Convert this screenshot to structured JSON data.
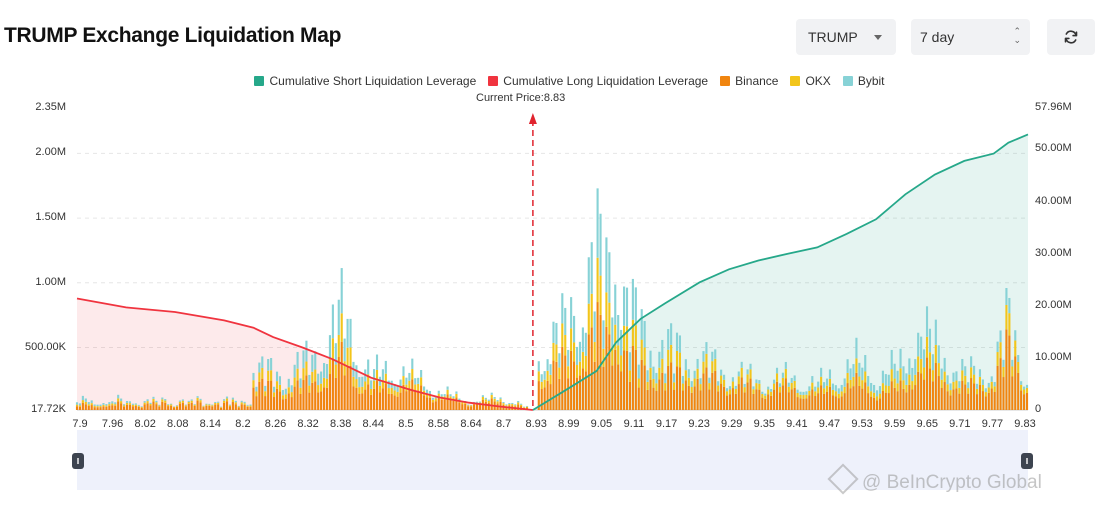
{
  "header": {
    "title": "TRUMP Exchange Liquidation Map",
    "symbol_select": "TRUMP",
    "range_select": "7 day"
  },
  "legend": [
    {
      "label": "Cumulative Short Liquidation Leverage",
      "color": "#26a88a"
    },
    {
      "label": "Cumulative Long Liquidation Leverage",
      "color": "#f0343f"
    },
    {
      "label": "Binance",
      "color": "#f0850f"
    },
    {
      "label": "OKX",
      "color": "#f2c51b"
    },
    {
      "label": "Bybit",
      "color": "#87d2d6"
    }
  ],
  "current_price_label": "Current Price:8.83",
  "watermark": "@ BeInCrypto Global",
  "chart_data": {
    "type": "bar",
    "current_price": 8.83,
    "x_ticks": [
      "7.9",
      "7.96",
      "8.02",
      "8.08",
      "8.14",
      "8.2",
      "8.26",
      "8.32",
      "8.38",
      "8.44",
      "8.5",
      "8.58",
      "8.64",
      "8.7",
      "8.93",
      "8.99",
      "9.05",
      "9.11",
      "9.17",
      "9.23",
      "9.29",
      "9.35",
      "9.41",
      "9.47",
      "9.53",
      "9.59",
      "9.65",
      "9.71",
      "9.77",
      "9.83"
    ],
    "y_left_ticks": [
      "2.35M",
      "2.00M",
      "1.50M",
      "1.00M",
      "500.00K",
      "17.72K"
    ],
    "y_left_values": [
      2350000,
      2000000,
      1500000,
      1000000,
      500000,
      17720
    ],
    "ylim_left": [
      17720,
      2350000
    ],
    "y_right_ticks": [
      "57.96M",
      "50.00M",
      "40.00M",
      "30.00M",
      "20.00M",
      "10.00M",
      "0"
    ],
    "y_right_values": [
      57960000,
      50000000,
      40000000,
      30000000,
      20000000,
      10000000,
      0
    ],
    "ylim_right": [
      0,
      57960000
    ],
    "x_range": [
      7.9,
      9.84
    ],
    "cumulative_long": {
      "x": [
        7.9,
        8.0,
        8.1,
        8.2,
        8.26,
        8.3,
        8.36,
        8.42,
        8.5,
        8.58,
        8.64,
        8.7,
        8.76,
        8.83
      ],
      "y": [
        21400000,
        19700000,
        18800000,
        17200000,
        15800000,
        14000000,
        12000000,
        9800000,
        6200000,
        3900000,
        2400000,
        1400000,
        700000,
        0
      ]
    },
    "cumulative_short": {
      "x": [
        8.83,
        8.9,
        8.96,
        9.0,
        9.05,
        9.1,
        9.17,
        9.23,
        9.29,
        9.35,
        9.41,
        9.47,
        9.53,
        9.59,
        9.65,
        9.71,
        9.77,
        9.8,
        9.84
      ],
      "y": [
        0,
        4000000,
        7500000,
        13000000,
        17500000,
        20500000,
        24500000,
        27000000,
        28700000,
        30000000,
        31200000,
        33800000,
        36600000,
        41400000,
        45200000,
        47800000,
        49200000,
        51300000,
        52900000
      ]
    },
    "bar_start": 7.9,
    "bar_step": 0.006,
    "bar_stack_order": [
      "Binance",
      "OKX",
      "Bybit"
    ],
    "bar_seed": [
      [
        8.26,
        480000
      ],
      [
        8.32,
        420000
      ],
      [
        8.38,
        600000
      ],
      [
        8.44,
        1120000
      ],
      [
        8.5,
        420000
      ],
      [
        8.56,
        480000
      ],
      [
        8.64,
        220000
      ],
      [
        8.7,
        100000
      ],
      [
        8.76,
        150000
      ],
      [
        8.8,
        80000
      ],
      [
        8.83,
        0
      ],
      [
        8.84,
        690000
      ],
      [
        8.9,
        980000
      ],
      [
        8.96,
        1840000
      ],
      [
        8.98,
        1600000
      ],
      [
        9.0,
        2120000
      ],
      [
        9.02,
        1300000
      ],
      [
        9.05,
        920000
      ],
      [
        9.1,
        750000
      ],
      [
        9.17,
        600000
      ],
      [
        9.23,
        450000
      ],
      [
        9.29,
        350000
      ],
      [
        9.35,
        380000
      ],
      [
        9.41,
        300000
      ],
      [
        9.47,
        500000
      ],
      [
        9.49,
        560000
      ],
      [
        9.53,
        400000
      ],
      [
        9.59,
        540000
      ],
      [
        9.61,
        1000000
      ],
      [
        9.65,
        750000
      ],
      [
        9.71,
        420000
      ],
      [
        9.77,
        480000
      ],
      [
        9.8,
        1070000
      ],
      [
        9.84,
        360000
      ]
    ]
  }
}
